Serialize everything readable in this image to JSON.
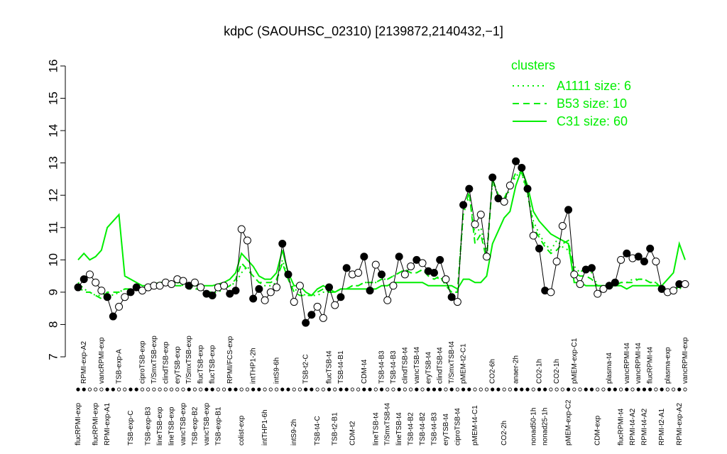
{
  "chart_data": {
    "type": "line",
    "title": "kdpC (SAOUHSC_02310) [2139872,2140432,−1]",
    "categories": [
      "flucRPMI-exp",
      "RPMI-exp-A2",
      null,
      "flucRPMI-exp",
      "vancRPMI-exp",
      "RPMI-exp-A1",
      null,
      "TSB-exp-A",
      null,
      "TSB-exp-C",
      null,
      "ciproTSB-exp",
      "TSB-exp-B3",
      "T/SmxTSB-exp",
      "lineTSB-exp",
      "clindTSB-exp",
      "lineTSB-exp",
      "eryTSB-exp",
      "vancTSB-exp",
      "T/SmxTSB-exp",
      "TSB-exp-B2",
      "flucTSB-exp",
      "vancTSB-exp",
      "flucTSB-exp",
      "TSB-exp-B1",
      null,
      "RPMI/FCS-exp",
      null,
      "colist-exp",
      null,
      "intTHP1-2h",
      null,
      "intTHP1-6h",
      null,
      "intS9-6h",
      null,
      null,
      "intS9-2h",
      null,
      "TSB-t2-C",
      null,
      "TSB-t4-C",
      null,
      "flucTSB-t4",
      "TSB-t2-B1",
      "TSB-t4-B1",
      null,
      "CDM-t2",
      null,
      "CDM-t4",
      null,
      "lineTSB-t4",
      "TSB-t4-B3",
      "T/SmxTSB-t4",
      "TSB-t4-B3",
      "lineTSB-t4",
      "clindTSB-t4",
      "TSB-t4-B2",
      "vancTSB-t4",
      "TSB-t4-B2",
      "eryTSB-t4",
      "TSB-t4-B3",
      "clindTSB-t4",
      "eryTSB-t4",
      "T/SmxTSB-t4",
      "ciproTSB-t4",
      "pMEM-t2-C1",
      null,
      "pMEM-t4-C1",
      null,
      null,
      "CO2-6h",
      null,
      "CO2-2h",
      null,
      "anaer-2h",
      null,
      null,
      "nonad50-1h",
      "CO2-1h",
      "nonad25-1h",
      null,
      "CO2-1h",
      null,
      "pMEM-exp-C2",
      "pMEM-exp-C1",
      null,
      null,
      null,
      "CDM-exp",
      null,
      "plasma-t4",
      null,
      "flucRPMI-t4",
      "vancRPMI-t4",
      "RPMI-t4-A2",
      "vancRPMI-t4",
      "RPMI-t4-A2",
      "flucRPMI-t4",
      null,
      "RPMI-t2-A1",
      "plasma-exp",
      null,
      "RPMI-exp-A2",
      "vancRPMI-exp"
    ],
    "values": [
      9.15,
      9.4,
      9.55,
      9.3,
      9.05,
      8.85,
      8.25,
      8.55,
      8.85,
      9.0,
      9.15,
      9.05,
      9.15,
      9.2,
      9.2,
      9.3,
      9.25,
      9.4,
      9.35,
      9.2,
      9.3,
      9.15,
      8.95,
      8.9,
      9.15,
      9.2,
      8.95,
      9.05,
      10.95,
      10.6,
      8.8,
      9.1,
      8.75,
      9.0,
      9.15,
      10.5,
      9.55,
      8.7,
      9.2,
      8.05,
      8.3,
      8.55,
      8.2,
      9.15,
      8.6,
      8.85,
      9.75,
      9.55,
      9.6,
      10.1,
      9.05,
      9.85,
      9.55,
      8.75,
      9.2,
      10.1,
      9.55,
      9.8,
      10.0,
      9.9,
      9.65,
      9.6,
      10.0,
      9.4,
      8.85,
      8.7,
      11.7,
      12.2,
      11.1,
      11.4,
      10.1,
      12.55,
      11.9,
      11.8,
      12.3,
      13.05,
      12.85,
      12.2,
      10.75,
      10.35,
      9.05,
      9.0,
      9.95,
      11.05,
      11.55,
      9.55,
      9.25,
      9.7,
      9.75,
      8.95,
      9.1,
      9.2,
      9.3,
      10.0,
      10.2,
      10.05,
      10.1,
      9.95,
      10.35,
      9.95,
      9.1,
      9.0,
      9.05,
      9.25,
      9.25
    ],
    "point_colors": [
      "black",
      "black",
      "white",
      "white",
      "white",
      "black",
      "black",
      "white",
      "white",
      "black",
      "black",
      "white",
      "white",
      "white",
      "white",
      "white",
      "white",
      "white",
      "white",
      "black",
      "white",
      "white",
      "black",
      "black",
      "white",
      "white",
      "black",
      "black",
      "white",
      "white",
      "black",
      "black",
      "white",
      "white",
      "white",
      "black",
      "black",
      "white",
      "white",
      "black",
      "black",
      "white",
      "white",
      "black",
      "white",
      "black",
      "black",
      "white",
      "white",
      "black",
      "black",
      "white",
      "black",
      "white",
      "white",
      "black",
      "white",
      "white",
      "black",
      "white",
      "black",
      "black",
      "black",
      "white",
      "black",
      "white",
      "black",
      "black",
      "white",
      "white",
      "white",
      "black",
      "black",
      "white",
      "white",
      "black",
      "black",
      "black",
      "white",
      "black",
      "black",
      "white",
      "white",
      "white",
      "black",
      "white",
      "white",
      "black",
      "black",
      "white",
      "white",
      "black",
      "black",
      "white",
      "black",
      "white",
      "black",
      "black",
      "black",
      "white",
      "black",
      "white",
      "white",
      "black",
      "white"
    ],
    "legend_title": "clusters",
    "series": [
      {
        "name": "A1111 size: 6",
        "color": "#00ee00",
        "dash": "dotted",
        "values": [
          9.3,
          9.1,
          9.0,
          8.9,
          8.9,
          9.0,
          8.9,
          9.0,
          9.1,
          9.1,
          9.1,
          9.1,
          9.2,
          9.2,
          9.2,
          9.25,
          9.2,
          9.3,
          9.2,
          9.2,
          9.1,
          9.1,
          9.0,
          9.0,
          9.0,
          9.1,
          9.2,
          9.3,
          9.6,
          9.8,
          9.5,
          9.3,
          9.2,
          9.2,
          9.3,
          10.0,
          9.4,
          9.1,
          9.0,
          8.9,
          8.9,
          8.9,
          9.0,
          9.0,
          9.0,
          9.1,
          9.1,
          9.2,
          9.2,
          9.3,
          9.3,
          9.3,
          9.4,
          9.4,
          9.5,
          9.6,
          9.7,
          9.6,
          9.6,
          9.7,
          9.6,
          9.5,
          9.4,
          9.3,
          9.0,
          9.0,
          11.4,
          12.0,
          10.8,
          11.0,
          10.2,
          12.4,
          12.0,
          11.8,
          12.2,
          12.6,
          12.7,
          12.0,
          11.2,
          10.8,
          10.5,
          10.3,
          10.6,
          10.4,
          10.3,
          9.8,
          9.6,
          9.8,
          9.6,
          9.2,
          9.2,
          9.2,
          9.2,
          9.3,
          9.3,
          9.4,
          9.4,
          9.4,
          9.3,
          9.3,
          9.1,
          9.0,
          9.0,
          9.1,
          9.2
        ]
      },
      {
        "name": "B53 size: 10",
        "color": "#00ee00",
        "dash": "dashed",
        "values": [
          9.2,
          9.0,
          9.0,
          8.9,
          8.8,
          9.0,
          9.0,
          9.0,
          9.1,
          9.1,
          9.1,
          9.1,
          9.2,
          9.2,
          9.2,
          9.25,
          9.2,
          9.2,
          9.2,
          9.1,
          9.1,
          9.1,
          9.0,
          9.0,
          9.1,
          9.1,
          9.2,
          9.4,
          9.9,
          9.7,
          9.5,
          9.3,
          9.3,
          9.3,
          9.4,
          9.9,
          9.4,
          9.0,
          8.9,
          8.9,
          8.9,
          9.0,
          9.1,
          9.0,
          9.0,
          9.1,
          9.1,
          9.2,
          9.2,
          9.3,
          9.3,
          9.3,
          9.4,
          9.4,
          9.5,
          9.6,
          9.7,
          9.6,
          9.6,
          9.7,
          9.5,
          9.4,
          9.5,
          9.2,
          9.0,
          9.0,
          11.5,
          12.1,
          10.5,
          10.8,
          10.0,
          12.5,
          12.0,
          11.9,
          12.3,
          12.7,
          12.7,
          12.1,
          11.0,
          10.7,
          10.4,
          10.2,
          10.3,
          10.5,
          10.6,
          9.6,
          9.5,
          9.5,
          9.4,
          9.2,
          9.2,
          9.2,
          9.2,
          9.3,
          9.3,
          9.3,
          9.4,
          9.4,
          9.3,
          9.3,
          9.1,
          9.0,
          9.0,
          9.2,
          9.3
        ]
      },
      {
        "name": "C31 size: 60",
        "color": "#00ee00",
        "dash": "solid",
        "values": [
          10.0,
          10.2,
          10.0,
          10.1,
          10.3,
          11.0,
          11.2,
          11.4,
          9.5,
          9.4,
          9.3,
          9.2,
          9.2,
          9.25,
          9.3,
          9.3,
          9.3,
          9.3,
          9.3,
          9.2,
          9.2,
          9.2,
          9.2,
          9.2,
          9.25,
          9.3,
          9.4,
          9.6,
          10.2,
          10.0,
          9.8,
          9.5,
          9.4,
          9.4,
          9.6,
          10.3,
          9.6,
          9.2,
          9.2,
          9.0,
          8.9,
          9.1,
          9.2,
          9.1,
          9.0,
          9.1,
          9.1,
          9.1,
          9.1,
          9.1,
          9.1,
          9.1,
          9.2,
          9.2,
          9.3,
          9.3,
          9.3,
          9.3,
          9.3,
          9.3,
          9.2,
          9.2,
          9.2,
          9.2,
          9.2,
          9.1,
          9.4,
          9.4,
          9.3,
          9.3,
          9.5,
          10.5,
          10.9,
          11.3,
          11.5,
          12.3,
          12.8,
          12.3,
          11.5,
          11.2,
          11.0,
          10.8,
          10.7,
          10.6,
          10.5,
          9.3,
          9.3,
          9.2,
          9.2,
          9.2,
          9.2,
          9.2,
          9.2,
          9.2,
          9.1,
          9.2,
          9.2,
          9.2,
          9.2,
          9.2,
          9.2,
          9.4,
          9.6,
          10.5,
          10.0
        ]
      }
    ],
    "ylim": [
      7,
      16
    ],
    "yticks": [
      7,
      8,
      9,
      10,
      11,
      12,
      13,
      14,
      15,
      16
    ]
  }
}
